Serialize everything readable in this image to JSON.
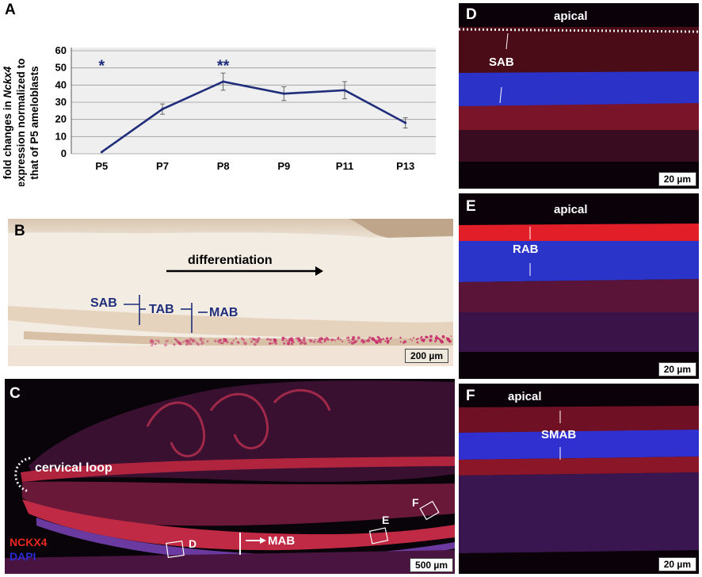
{
  "panel_letters": {
    "a": "A",
    "b": "B",
    "c": "C",
    "d": "D",
    "e": "E",
    "f": "F"
  },
  "panel_a": {
    "ylabel_line1_pre": "fold changes in ",
    "ylabel_line1_italic": "Nckx4",
    "ylabel_line2": "expression normalized to",
    "ylabel_line3": "that of P5 ameloblasts",
    "significance": [
      {
        "at": "P5",
        "mark": "*"
      },
      {
        "at": "P8",
        "mark": "**"
      }
    ]
  },
  "chart_data": {
    "type": "line",
    "categories": [
      "P5",
      "P7",
      "P8",
      "P9",
      "P11",
      "P13"
    ],
    "values": [
      1,
      26,
      42,
      35,
      37,
      18
    ],
    "errors": [
      0,
      3,
      5,
      4,
      5,
      3
    ],
    "ylim": [
      0,
      60
    ],
    "yticks": [
      0,
      10,
      20,
      30,
      40,
      50,
      60
    ],
    "grid": true,
    "line_color": "#1f2d7a",
    "plot_bg": "#efefef",
    "xlabel": "",
    "ylabel": "fold changes in Nckx4 expression normalized to that of P5 ameloblasts"
  },
  "panel_b": {
    "arrow_label": "differentiation",
    "zones": [
      "SAB",
      "TAB",
      "MAB"
    ],
    "scale": "200 µm",
    "stain_color": "#c8306c",
    "label_color": "#1f2d7a"
  },
  "panel_c": {
    "cervical_loop": "cervical loop",
    "mab": "MAB",
    "boxes": [
      "D",
      "E",
      "F"
    ],
    "legend": [
      "NCKX4",
      "DAPI"
    ],
    "legend_colors": [
      "#e8281e",
      "#2a2ad0"
    ],
    "scale": "500 µm"
  },
  "panel_d": {
    "apical": "apical",
    "zone": "SAB",
    "scale": "20 µm"
  },
  "panel_e": {
    "apical": "apical",
    "zone": "RAB",
    "scale": "20 µm"
  },
  "panel_f": {
    "apical": "apical",
    "zone": "SMAB",
    "scale": "20 µm"
  }
}
